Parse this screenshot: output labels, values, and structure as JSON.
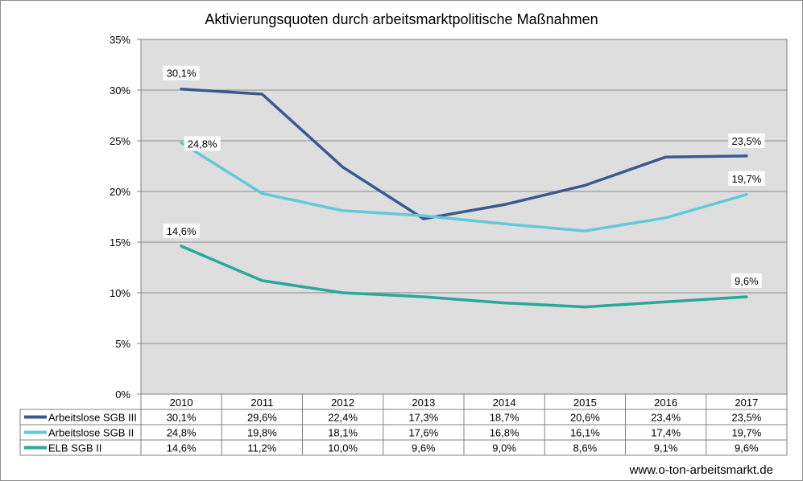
{
  "chart_data": {
    "type": "line",
    "title": "Aktivierungsquoten durch arbeitsmarktpolitische Maßnahmen",
    "categories": [
      "2010",
      "2011",
      "2012",
      "2013",
      "2014",
      "2015",
      "2016",
      "2017"
    ],
    "ylim": [
      0,
      35
    ],
    "yticks": [
      "0%",
      "5%",
      "10%",
      "15%",
      "20%",
      "25%",
      "30%",
      "35%"
    ],
    "grid": true,
    "legend": "data-table-left",
    "series": [
      {
        "name": "Arbeitslose SGB III",
        "color": "#3a5a8c",
        "values": [
          30.1,
          29.6,
          22.4,
          17.3,
          18.7,
          20.6,
          23.4,
          23.5
        ],
        "labels": [
          "30,1%",
          "29,6%",
          "22,4%",
          "17,3%",
          "18,7%",
          "20,6%",
          "23,4%",
          "23,5%"
        ]
      },
      {
        "name": "Arbeitslose SGB II",
        "color": "#62c9d8",
        "values": [
          24.8,
          19.8,
          18.1,
          17.6,
          16.8,
          16.1,
          17.4,
          19.7
        ],
        "labels": [
          "24,8%",
          "19,8%",
          "18,1%",
          "17,6%",
          "16,8%",
          "16,1%",
          "17,4%",
          "19,7%"
        ]
      },
      {
        "name": "ELB SGB II",
        "color": "#2aa899",
        "values": [
          14.6,
          11.2,
          10.0,
          9.6,
          9.0,
          8.6,
          9.1,
          9.6
        ],
        "labels": [
          "14,6%",
          "11,2%",
          "10,0%",
          "9,6%",
          "9,0%",
          "8,6%",
          "9,1%",
          "9,6%"
        ]
      }
    ]
  },
  "footer": {
    "source": "www.o-ton-arbeitsmarkt.de"
  }
}
